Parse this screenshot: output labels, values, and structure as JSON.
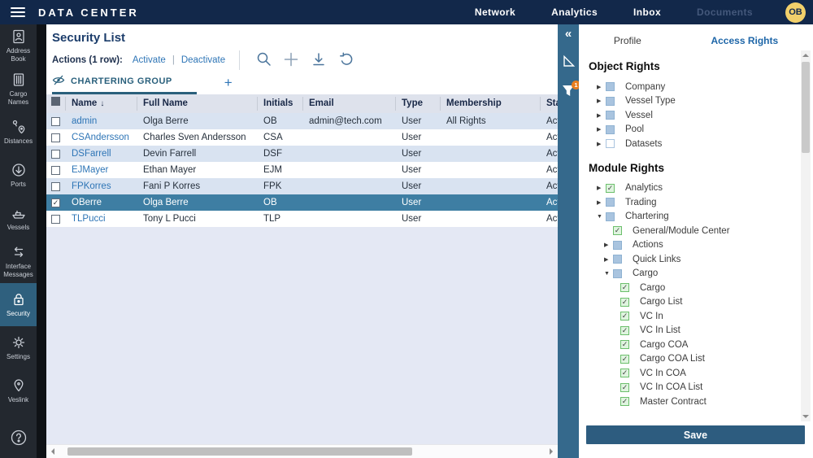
{
  "topbar": {
    "title": "DATA CENTER",
    "nav": [
      {
        "label": "Network",
        "muted": false
      },
      {
        "label": "Analytics",
        "muted": false
      },
      {
        "label": "Inbox",
        "muted": false
      },
      {
        "label": "Documents",
        "muted": true
      }
    ],
    "avatar": "OB"
  },
  "sidebar": {
    "items": [
      {
        "label": "Address Book",
        "icon": "address-book",
        "active": false
      },
      {
        "label": "Cargo Names",
        "icon": "cargo-names",
        "active": false
      },
      {
        "label": "Distances",
        "icon": "distances",
        "active": false
      },
      {
        "label": "Ports",
        "icon": "ports",
        "active": false
      },
      {
        "label": "Vessels",
        "icon": "vessels",
        "active": false
      },
      {
        "label": "Interface Messages",
        "icon": "interface-messages",
        "active": false
      },
      {
        "label": "Security",
        "icon": "security",
        "active": true
      },
      {
        "label": "Settings",
        "icon": "settings",
        "active": false
      },
      {
        "label": "Veslink",
        "icon": "veslink",
        "active": false
      }
    ],
    "help_icon": "help"
  },
  "main": {
    "title": "Security List",
    "actions_label": "Actions (1 row):",
    "action_links": [
      "Activate",
      "Deactivate"
    ],
    "toolbar_icons": [
      "search",
      "add",
      "export",
      "undo"
    ],
    "tab": {
      "label": "CHARTERING GROUP",
      "icon": "eye-slash"
    },
    "add_tab_label": "+",
    "table": {
      "columns": [
        "",
        "Name",
        "Full Name",
        "Initials",
        "Email",
        "Type",
        "Membership",
        "Status"
      ],
      "sorted_column": "Name",
      "sort_direction": "↓",
      "rows": [
        {
          "name": "admin",
          "full_name": "Olga Berre",
          "initials": "OB",
          "email": "admin@tech.com",
          "type": "User",
          "membership": "All Rights",
          "status": "Active",
          "checked": false,
          "selected": false
        },
        {
          "name": "CSAndersson",
          "full_name": "Charles Sven Andersson",
          "initials": "CSA",
          "email": "",
          "type": "User",
          "membership": "",
          "status": "Active",
          "checked": false,
          "selected": false
        },
        {
          "name": "DSFarrell",
          "full_name": "Devin Farrell",
          "initials": "DSF",
          "email": "",
          "type": "User",
          "membership": "",
          "status": "Active",
          "checked": false,
          "selected": false
        },
        {
          "name": "EJMayer",
          "full_name": "Ethan Mayer",
          "initials": "EJM",
          "email": "",
          "type": "User",
          "membership": "",
          "status": "Active",
          "checked": false,
          "selected": false
        },
        {
          "name": "FPKorres",
          "full_name": "Fani P Korres",
          "initials": "FPK",
          "email": "",
          "type": "User",
          "membership": "",
          "status": "Active",
          "checked": false,
          "selected": false
        },
        {
          "name": "OBerre",
          "full_name": "Olga Berre",
          "initials": "OB",
          "email": "",
          "type": "User",
          "membership": "",
          "status": "Active",
          "checked": true,
          "selected": true
        },
        {
          "name": "TLPucci",
          "full_name": "Tony L Pucci",
          "initials": "TLP",
          "email": "",
          "type": "User",
          "membership": "",
          "status": "Active",
          "checked": false,
          "selected": false
        }
      ]
    }
  },
  "strip": {
    "collapse_icon": "«",
    "icons": [
      "selection-tool",
      "filter"
    ],
    "filter_badge": "1"
  },
  "panel": {
    "tabs": [
      {
        "label": "Profile",
        "active": false
      },
      {
        "label": "Access Rights",
        "active": true
      }
    ],
    "sections": [
      {
        "title": "Object Rights",
        "items": [
          {
            "label": "Company",
            "level": 1,
            "arrow": "collapsed",
            "check": "blue"
          },
          {
            "label": "Vessel Type",
            "level": 1,
            "arrow": "collapsed",
            "check": "blue"
          },
          {
            "label": "Vessel",
            "level": 1,
            "arrow": "collapsed",
            "check": "blue"
          },
          {
            "label": "Pool",
            "level": 1,
            "arrow": "collapsed",
            "check": "blue"
          },
          {
            "label": "Datasets",
            "level": 1,
            "arrow": "collapsed",
            "check": "empty"
          }
        ]
      },
      {
        "title": "Module Rights",
        "items": [
          {
            "label": "Analytics",
            "level": 1,
            "arrow": "collapsed",
            "check": "green"
          },
          {
            "label": "Trading",
            "level": 1,
            "arrow": "collapsed",
            "check": "blue"
          },
          {
            "label": "Chartering",
            "level": 1,
            "arrow": "expanded",
            "check": "blue"
          },
          {
            "label": "General/Module Center",
            "level": 2,
            "arrow": "none",
            "check": "green"
          },
          {
            "label": "Actions",
            "level": 2,
            "arrow": "collapsed",
            "check": "blue"
          },
          {
            "label": "Quick Links",
            "level": 2,
            "arrow": "collapsed",
            "check": "blue"
          },
          {
            "label": "Cargo",
            "level": 2,
            "arrow": "expanded",
            "check": "blue"
          },
          {
            "label": "Cargo",
            "level": 3,
            "arrow": "none",
            "check": "green"
          },
          {
            "label": "Cargo List",
            "level": 3,
            "arrow": "none",
            "check": "green"
          },
          {
            "label": "VC In",
            "level": 3,
            "arrow": "none",
            "check": "green"
          },
          {
            "label": "VC In List",
            "level": 3,
            "arrow": "none",
            "check": "green"
          },
          {
            "label": "Cargo COA",
            "level": 3,
            "arrow": "none",
            "check": "green"
          },
          {
            "label": "Cargo COA List",
            "level": 3,
            "arrow": "none",
            "check": "green"
          },
          {
            "label": "VC In COA",
            "level": 3,
            "arrow": "none",
            "check": "green"
          },
          {
            "label": "VC In COA List",
            "level": 3,
            "arrow": "none",
            "check": "green"
          },
          {
            "label": "Master Contract",
            "level": 3,
            "arrow": "none",
            "check": "green"
          }
        ]
      }
    ],
    "save_label": "Save"
  },
  "colors": {
    "topbar_bg": "#12284A",
    "sidebar_bg": "#23282F",
    "sidebar_active_bg": "#2F607E",
    "strip_bg": "#35698C",
    "accent_link": "#2E75B6",
    "tab_teal": "#2A607C",
    "table_header_bg": "#DEE2EC",
    "row_stripe_bg": "#D9E3F1",
    "row_selected_bg": "#3E7EA3",
    "empty_area_bg": "#E4E8F4",
    "save_button_bg": "#2D5C7F",
    "filter_badge_bg": "#E87D1E",
    "avatar_bg": "#F2D06B",
    "check_green_bg": "#DFF4DF",
    "check_blue_bg": "#A9C4DF"
  }
}
